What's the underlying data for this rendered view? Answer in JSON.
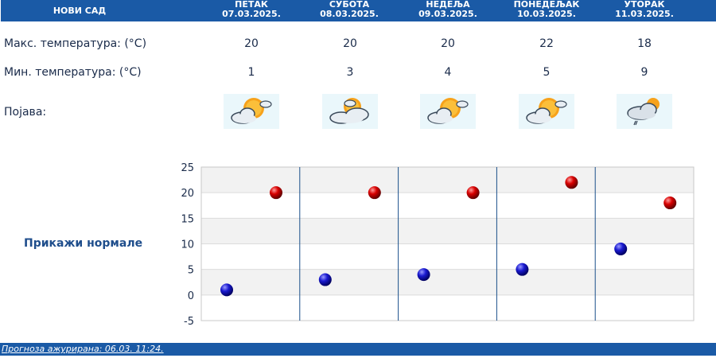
{
  "header": {
    "city": "НОВИ САД",
    "days": [
      {
        "name": "ПЕТАК",
        "date": "07.03.2025."
      },
      {
        "name": "СУБОТА",
        "date": "08.03.2025."
      },
      {
        "name": "НЕДЕЉА",
        "date": "09.03.2025."
      },
      {
        "name": "ПОНЕДЕЉАК",
        "date": "10.03.2025."
      },
      {
        "name": "УТОРАК",
        "date": "11.03.2025."
      }
    ]
  },
  "rows": {
    "max_label": "Макс. температура: (°C)",
    "min_label": "Мин. температура: (°C)",
    "phenomenon_label": "Појава:",
    "max": [
      "20",
      "20",
      "20",
      "22",
      "18"
    ],
    "min": [
      "1",
      "3",
      "4",
      "5",
      "9"
    ],
    "icons": [
      "sun-cloud-icon",
      "sun-cloud-icon",
      "sun-cloud-icon",
      "sun-cloud-icon",
      "cloud-rain-icon"
    ]
  },
  "normals_link": "Прикажи нормале",
  "footer": "Прогноза ажурирана:  06.03.  11:24.",
  "colors": {
    "header_bg": "#1a5aa6",
    "max_dot": "#cc0000",
    "min_dot": "#1010b0",
    "text": "#1a2b4a"
  },
  "chart_data": {
    "type": "scatter",
    "categories": [
      "ПЕТАК",
      "СУБОТА",
      "НЕДЕЉА",
      "ПОНЕДЕЉАК",
      "УТОРАК"
    ],
    "series": [
      {
        "values": [
          20,
          20,
          20,
          22,
          18
        ],
        "color": "#cc0000"
      },
      {
        "values": [
          1,
          3,
          4,
          5,
          9
        ],
        "color": "#1010b0"
      }
    ],
    "ylim": [
      -5,
      25
    ],
    "yticks": [
      "25",
      "20",
      "15",
      "10",
      "5",
      "0",
      "-5"
    ],
    "grid": true
  }
}
